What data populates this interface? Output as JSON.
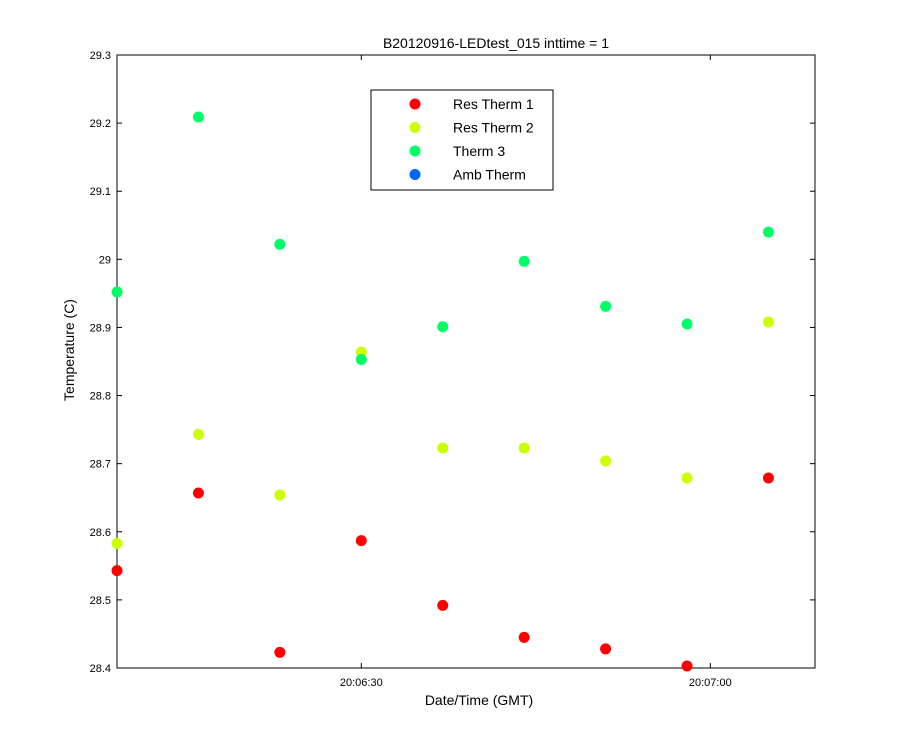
{
  "chart_data": {
    "type": "scatter",
    "title": "B20120916-LEDtest_015 inttime = 1",
    "xlabel": "Date/Time (GMT)",
    "ylabel": "Temperature (C)",
    "x_ticks": [
      "20:06:30",
      "20:07:00"
    ],
    "y_ticks": [
      "28.4",
      "28.5",
      "28.6",
      "28.7",
      "28.8",
      "28.9",
      "29",
      "29.1",
      "29.2",
      "29.3"
    ],
    "ylim": [
      28.4,
      29.3
    ],
    "xlim": [
      "20:06:09",
      "20:07:09"
    ],
    "x": [
      "20:06:09",
      "20:06:16",
      "20:06:23",
      "20:06:30",
      "20:06:37",
      "20:06:44",
      "20:06:51",
      "20:06:58",
      "20:07:05"
    ],
    "series": [
      {
        "name": "Res Therm 1",
        "color": "#ff0000",
        "values": [
          28.543,
          28.657,
          28.423,
          28.587,
          28.492,
          28.445,
          28.428,
          28.403,
          28.679
        ]
      },
      {
        "name": "Res Therm 2",
        "color": "#ccff00",
        "values": [
          28.583,
          28.743,
          28.654,
          28.864,
          28.723,
          28.723,
          28.704,
          28.679,
          28.908
        ]
      },
      {
        "name": "Therm 3",
        "color": "#00ff66",
        "values": [
          28.952,
          29.209,
          29.022,
          28.853,
          28.901,
          28.997,
          28.931,
          28.905,
          29.04
        ]
      },
      {
        "name": "Amb Therm",
        "color": "#0066ff",
        "values": []
      }
    ],
    "legend_position": "top-center",
    "grid": false
  }
}
